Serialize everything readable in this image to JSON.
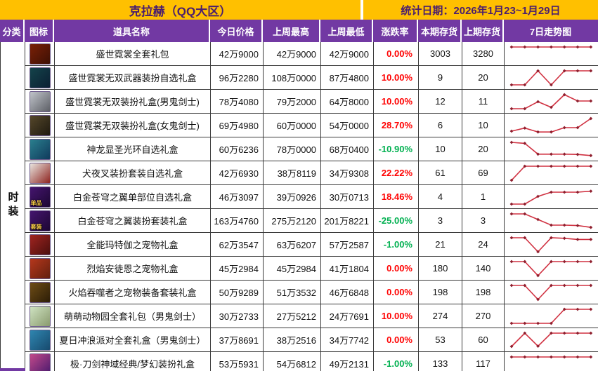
{
  "header": {
    "title": "克拉赫（QQ大区）",
    "date_label": "统计日期：2026年1月23~1月29日"
  },
  "columns": [
    "分类",
    "图标",
    "道具名称",
    "今日价格",
    "上周最高",
    "上周最低",
    "涨跌率",
    "本期存货",
    "上期存货",
    "7日走势图"
  ],
  "category": {
    "label": "时装"
  },
  "colors": {
    "topbar_gold": "#FFC000",
    "header_purple": "#7239A3",
    "title_text": "#4A1E6E",
    "change_up_red": "#FF0000",
    "change_down_green": "#00B050",
    "trend_line_red": "#D03040"
  },
  "rows": [
    {
      "name": "盛世霓裳全套礼包",
      "today": "42万9000",
      "week_high": "42万9000",
      "week_low": "42万9000",
      "change": "0.00%",
      "stock_now": "3003",
      "stock_prev": "3280",
      "trend": [
        1,
        1,
        1,
        1,
        1,
        1,
        1
      ],
      "icon_name": "red-package-icon",
      "icon_colors": [
        "#7a2007",
        "#3d1004"
      ],
      "icon_badge": ""
    },
    {
      "name": "盛世霓裳无双武器装扮自选礼盒",
      "today": "96万2280",
      "week_high": "108万0000",
      "week_low": "87万4800",
      "change": "10.00%",
      "stock_now": "9",
      "stock_prev": "20",
      "trend": [
        0,
        0,
        1,
        0,
        1,
        1,
        1
      ],
      "icon_name": "weapon-chest-icon",
      "icon_colors": [
        "#14434a",
        "#0b1f33"
      ],
      "icon_badge": ""
    },
    {
      "name": "盛世霓裳无双装扮礼盒(男鬼剑士)",
      "today": "78万4080",
      "week_high": "79万2000",
      "week_low": "64万8000",
      "change": "10.00%",
      "stock_now": "12",
      "stock_prev": "11",
      "trend": [
        0,
        0,
        0.5,
        0.1,
        1,
        0.55,
        0.55
      ],
      "icon_name": "male-slayer-portrait-icon",
      "icon_colors": [
        "#bfc3c9",
        "#5d5f66"
      ],
      "icon_badge": ""
    },
    {
      "name": "盛世霓裳无双装扮礼盒(女鬼剑士)",
      "today": "69万4980",
      "week_high": "60万0000",
      "week_low": "54万0000",
      "change": "28.70%",
      "stock_now": "6",
      "stock_prev": "10",
      "trend": [
        0.1,
        0.32,
        0.04,
        0.04,
        0.35,
        0.35,
        1
      ],
      "icon_name": "female-slayer-portrait-icon",
      "icon_colors": [
        "#55472a",
        "#1f1a10"
      ],
      "icon_badge": ""
    },
    {
      "name": "神龙显圣光环自选礼盒",
      "today": "60万6236",
      "week_high": "78万0000",
      "week_low": "68万0400",
      "change": "-10.90%",
      "stock_now": "10",
      "stock_prev": "20",
      "trend": [
        1,
        0.93,
        0.16,
        0.16,
        0.16,
        0.14,
        0.06
      ],
      "icon_name": "aura-box-icon",
      "icon_colors": [
        "#2a7f8e",
        "#103a5c"
      ],
      "icon_badge": ""
    },
    {
      "name": "犬夜叉装扮套装自选礼盒",
      "today": "42万6930",
      "week_high": "38万8119",
      "week_low": "34万9308",
      "change": "22.22%",
      "stock_now": "61",
      "stock_prev": "69",
      "trend": [
        0,
        1,
        1,
        1,
        1,
        1,
        1
      ],
      "icon_name": "inuyasha-portrait-icon",
      "icon_colors": [
        "#e8e4de",
        "#8e2420"
      ],
      "icon_badge": ""
    },
    {
      "name": "白金苍穹之翼单部位自选礼盒",
      "today": "46万3097",
      "week_high": "39万0926",
      "week_low": "30万0713",
      "change": "18.46%",
      "stock_now": "4",
      "stock_prev": "1",
      "trend": [
        0,
        0,
        0.55,
        0.85,
        0.85,
        0.85,
        0.92
      ],
      "icon_name": "platinum-wing-single-icon",
      "icon_colors": [
        "#45156e",
        "#1c0733"
      ],
      "icon_badge": "单品"
    },
    {
      "name": "白金苍穹之翼装扮套装礼盒",
      "today": "163万4760",
      "week_high": "275万2120",
      "week_low": "201万8221",
      "change": "-25.00%",
      "stock_now": "3",
      "stock_prev": "3",
      "trend": [
        1,
        1,
        0.6,
        0.2,
        0.2,
        0.17,
        0.04
      ],
      "icon_name": "platinum-wing-set-icon",
      "icon_colors": [
        "#45156e",
        "#1c0733"
      ],
      "icon_badge": "套装"
    },
    {
      "name": "全能玛特伽之宠物礼盒",
      "today": "62万3547",
      "week_high": "63万6207",
      "week_low": "57万2587",
      "change": "-1.00%",
      "stock_now": "21",
      "stock_prev": "24",
      "trend": [
        1,
        1,
        0,
        1,
        0.96,
        0.88,
        0.88
      ],
      "icon_name": "pet-giftbox-icon",
      "icon_colors": [
        "#a02420",
        "#4a0f0d"
      ],
      "icon_badge": ""
    },
    {
      "name": "烈焰安徒恩之宠物礼盒",
      "today": "45万2984",
      "week_high": "45万2984",
      "week_low": "41万1804",
      "change": "0.00%",
      "stock_now": "180",
      "stock_prev": "140",
      "trend": [
        1,
        1,
        0,
        1,
        1,
        1,
        1
      ],
      "icon_name": "flame-pet-giftbox-icon",
      "icon_colors": [
        "#b5371c",
        "#63200e"
      ],
      "icon_badge": ""
    },
    {
      "name": "火焰吞噬者之宠物装备套装礼盒",
      "today": "50万9289",
      "week_high": "51万3532",
      "week_low": "46万6848",
      "change": "0.00%",
      "stock_now": "198",
      "stock_prev": "198",
      "trend": [
        1,
        1,
        0,
        1,
        1,
        1,
        1
      ],
      "icon_name": "flame-devourer-icon",
      "icon_colors": [
        "#6e4d16",
        "#2c1d07"
      ],
      "icon_badge": ""
    },
    {
      "name": "萌萌动物园全套礼包（男鬼剑士）",
      "today": "30万2733",
      "week_high": "27万5212",
      "week_low": "24万7691",
      "change": "10.00%",
      "stock_now": "274",
      "stock_prev": "270",
      "trend": [
        0,
        0,
        0,
        0,
        1,
        1,
        1
      ],
      "icon_name": "cute-zoo-icon",
      "icon_colors": [
        "#cfe3c2",
        "#8a9a6e"
      ],
      "icon_badge": ""
    },
    {
      "name": "夏日冲浪派对全套礼盒（男鬼剑士）",
      "today": "37万8691",
      "week_high": "38万2516",
      "week_low": "34万7742",
      "change": "0.00%",
      "stock_now": "53",
      "stock_prev": "60",
      "trend": [
        0.05,
        1,
        0.07,
        1,
        1,
        1,
        1
      ],
      "icon_name": "summer-surf-icon",
      "icon_colors": [
        "#2f86b0",
        "#174a6e"
      ],
      "icon_badge": ""
    },
    {
      "name": "极·刀剑神域经典/梦幻装扮礼盒",
      "today": "53万5931",
      "week_high": "54万6812",
      "week_low": "49万2131",
      "change": "-1.00%",
      "stock_now": "133",
      "stock_prev": "117",
      "trend": [
        1,
        1,
        1,
        1,
        1,
        1,
        1
      ],
      "icon_name": "sao-bag-icon",
      "icon_colors": [
        "#c2498a",
        "#4a1a6e"
      ],
      "icon_badge": ""
    }
  ]
}
